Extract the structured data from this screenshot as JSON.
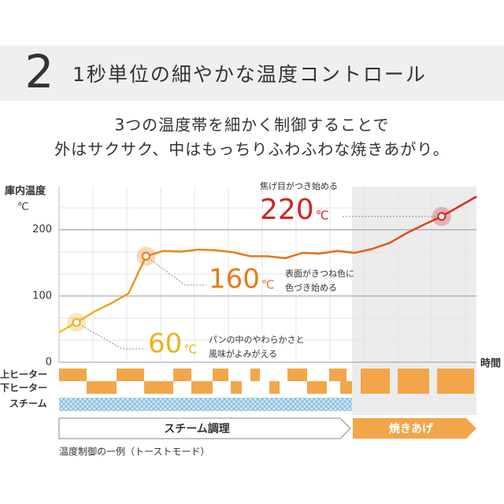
{
  "header": {
    "number": "2",
    "title": "1秒単位の細やかな温度コントロール"
  },
  "subtitle": [
    "3つの温度帯を細かく制御することで",
    "外はサクサク、中はもっちりふわふわな焼きあがり。"
  ],
  "chart_data": {
    "type": "line",
    "y_label": [
      "庫内温度",
      "℃"
    ],
    "x_label": "時間",
    "categories": [
      null,
      null,
      null,
      null,
      null,
      null,
      null,
      null,
      null,
      null,
      null,
      null,
      null,
      null,
      null,
      null,
      null,
      null,
      null,
      null,
      null,
      null,
      null,
      null,
      null
    ],
    "values": [
      45,
      60,
      76,
      89,
      104,
      160,
      168,
      167,
      170,
      169,
      166,
      160,
      160,
      157,
      165,
      164,
      168,
      165,
      171,
      180,
      195,
      208,
      220,
      235,
      250
    ],
    "color_stops": [
      "#f2c42a",
      "#ec8a1c",
      "#e06a1a",
      "#d42424"
    ],
    "ylim": [
      0,
      265
    ],
    "yticks": [
      0,
      100,
      200
    ],
    "grid": true,
    "annotations": [
      {
        "index": 1,
        "value_label": "60",
        "unit": "℃",
        "color": "#e8b420",
        "note": [
          "パンの中のやわらかさと",
          "風味がよみがえる"
        ]
      },
      {
        "index": 5,
        "value_label": "160",
        "unit": "℃",
        "color": "#e67a1a",
        "note": [
          "表面がきつね色に",
          "色づき始める"
        ]
      },
      {
        "index": 22,
        "value_label": "220",
        "unit": "℃",
        "color": "#d42424",
        "note": [
          "焦げ目がつき始める"
        ]
      }
    ],
    "row_labels": [
      "上ヒーター",
      "下ヒーター",
      "スチーム"
    ],
    "phases": [
      "スチーム調理",
      "焼きあげ"
    ],
    "caption": "温度制御の一例（トーストモード）"
  }
}
